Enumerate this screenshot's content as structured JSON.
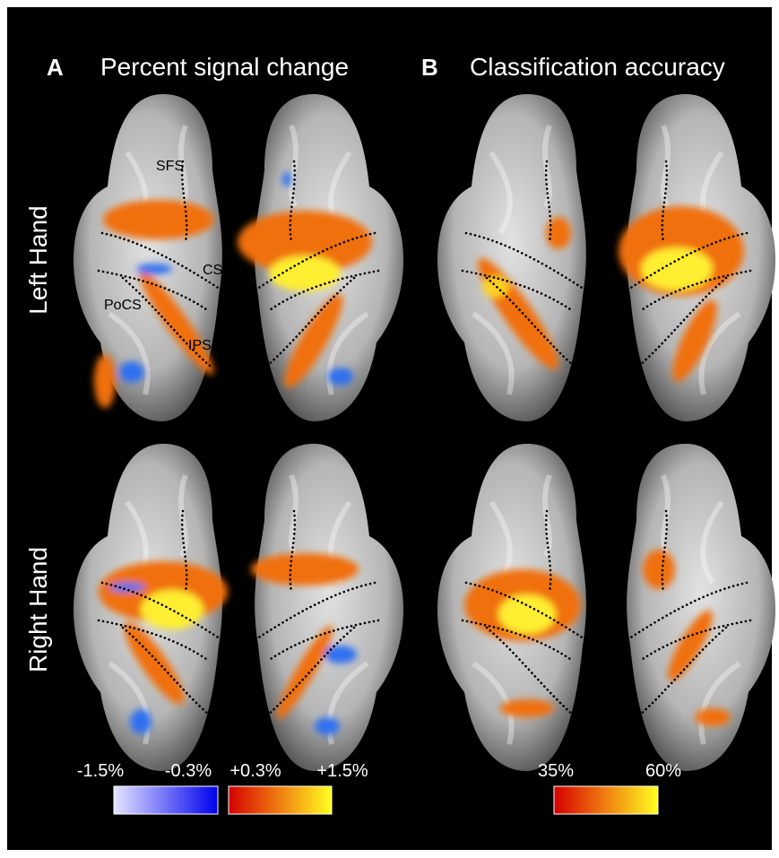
{
  "panels": [
    {
      "letter": "A",
      "title": "Percent signal change"
    },
    {
      "letter": "B",
      "title": "Classification accuracy"
    }
  ],
  "rows": [
    "Left Hand",
    "Right Hand"
  ],
  "sulci": [
    "SFS",
    "CS",
    "PoCS",
    "IPS"
  ],
  "colorbars": [
    {
      "labels": [
        "-1.5%",
        "-0.3%",
        "+0.3%",
        "+1.5%"
      ]
    },
    {
      "labels": [
        "35%",
        "60%"
      ]
    }
  ]
}
